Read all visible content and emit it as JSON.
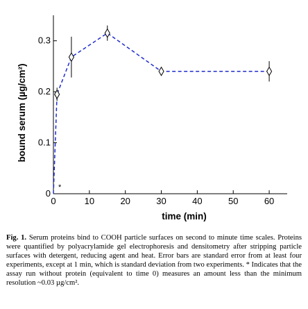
{
  "chart_data": {
    "type": "line",
    "xlabel": "time (min)",
    "ylabel": "bound serum (µg/cm²)",
    "xlim": [
      0,
      65
    ],
    "ylim": [
      0,
      0.35
    ],
    "xticks": [
      0,
      10,
      20,
      30,
      40,
      50,
      60
    ],
    "yticks": [
      0,
      0.1,
      0.2,
      0.3
    ],
    "xtick_labels": [
      "0",
      "10",
      "20",
      "30",
      "40",
      "50",
      "60"
    ],
    "ytick_labels": [
      "0",
      "0.1",
      "0.2",
      "0.3"
    ],
    "series": [
      {
        "style": "dashed",
        "color": "#1f2ccf",
        "marker": "diamond",
        "points": [
          {
            "x": 0,
            "y": 0.0
          },
          {
            "x": 1,
            "y": 0.195,
            "err": 0.013
          },
          {
            "x": 5,
            "y": 0.268,
            "err": 0.04
          },
          {
            "x": 15,
            "y": 0.315,
            "err": 0.015
          },
          {
            "x": 30,
            "y": 0.24,
            "err": 0.008
          },
          {
            "x": 60,
            "y": 0.24,
            "err": 0.02
          }
        ]
      }
    ],
    "annotations": [
      {
        "text": "*",
        "x": 1,
        "y": 0.008
      }
    ],
    "grid": false,
    "legend": "none"
  },
  "caption": {
    "label": "Fig. 1.",
    "text": "Serum proteins bind to COOH particle surfaces on second to minute time scales. Proteins were quantified by polyacrylamide gel electrophoresis and densitometry after stripping particle surfaces with detergent, reducing agent and heat. Error bars are standard error from at least four experiments, except at 1 min, which is standard deviation from two experiments. * Indicates that the assay run without protein (equivalent to time 0) measures an amount less than the minimum resolution ~0.03 µg/cm²."
  }
}
